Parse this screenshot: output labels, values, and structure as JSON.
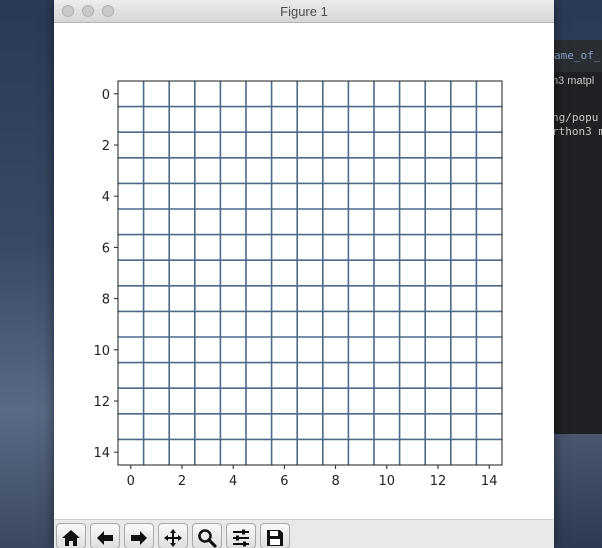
{
  "window": {
    "title": "Figure 1"
  },
  "background_terminal": {
    "tab_text": "ame_of_",
    "line1": "n3 matpl",
    "line2": "ng/popu",
    "line3": "rthon3 m"
  },
  "toolbar": {
    "buttons": [
      {
        "name": "home-icon"
      },
      {
        "name": "back-arrow-icon"
      },
      {
        "name": "forward-arrow-icon"
      },
      {
        "name": "pan-move-icon"
      },
      {
        "name": "zoom-magnifier-icon"
      },
      {
        "name": "configure-subplots-icon"
      },
      {
        "name": "save-floppy-icon"
      }
    ]
  },
  "chart_data": {
    "type": "heatmap",
    "grid_size": [
      15,
      15
    ],
    "values": "all cells white (empty)",
    "x_ticks": [
      "0",
      "2",
      "4",
      "6",
      "8",
      "10",
      "12",
      "14"
    ],
    "y_ticks": [
      "0",
      "2",
      "4",
      "6",
      "8",
      "10",
      "12",
      "14"
    ],
    "xlim": [
      -0.5,
      14.5
    ],
    "ylim": [
      14.5,
      -0.5
    ],
    "grid": true,
    "grid_color": "#4a6b8a",
    "title": "",
    "xlabel": "",
    "ylabel": ""
  }
}
